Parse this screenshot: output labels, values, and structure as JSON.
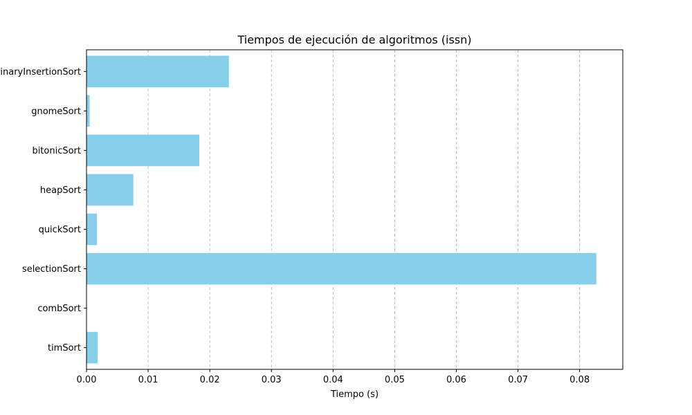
{
  "chart_data": {
    "type": "bar",
    "orientation": "horizontal",
    "title": "Tiempos de ejecución de algoritmos (issn)",
    "xlabel": "Tiempo (s)",
    "ylabel": "",
    "categories": [
      "binaryInsertionSort",
      "gnomeSort",
      "bitonicSort",
      "heapSort",
      "quickSort",
      "selectionSort",
      "combSort",
      "timSort"
    ],
    "values": [
      0.0231,
      0.0005,
      0.0183,
      0.0076,
      0.0017,
      0.0827,
      0.0,
      0.0018
    ],
    "xlim": [
      0,
      0.087
    ],
    "xticks": [
      0.0,
      0.01,
      0.02,
      0.03,
      0.04,
      0.05,
      0.06,
      0.07,
      0.08
    ],
    "xtick_labels": [
      "0.00",
      "0.01",
      "0.02",
      "0.03",
      "0.04",
      "0.05",
      "0.06",
      "0.07",
      "0.08"
    ],
    "grid": "x-dashed",
    "legend": "none",
    "bar_color": "#87ceeb",
    "grid_color": "#b0b0b0"
  }
}
